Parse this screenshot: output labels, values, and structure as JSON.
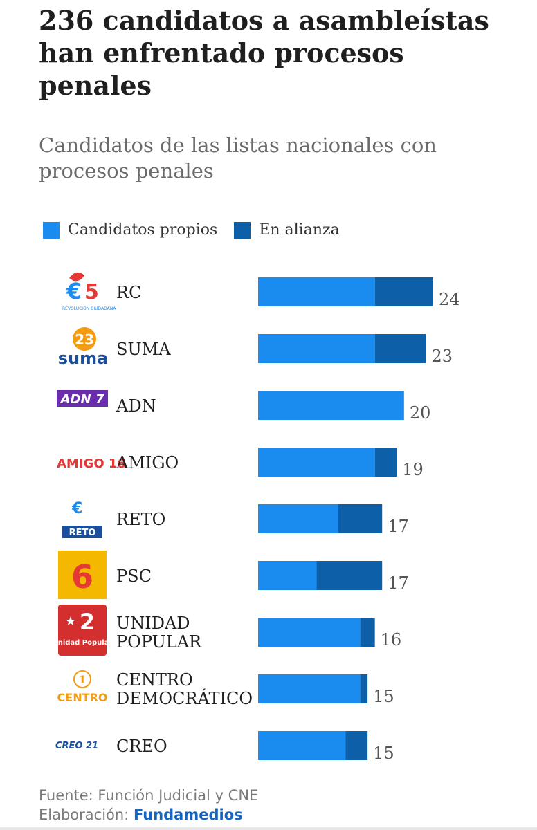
{
  "header": {
    "title": "236 candidatos a asambleístas han enfrentado procesos penales",
    "subtitle": "Candidatos de las listas nacionales con procesos penales"
  },
  "legend": [
    {
      "label": "Candidatos propios",
      "color": "#1a8cf0"
    },
    {
      "label": "En alianza",
      "color": "#0d5fa8"
    }
  ],
  "footer": {
    "source": "Fuente: Función Judicial y CNE",
    "credit_prefix": "Elaboración:",
    "credit_brand": "Fundamedios"
  },
  "chart_data": {
    "type": "bar",
    "orientation": "horizontal",
    "stacked": true,
    "title": "236 candidatos a asambleístas han enfrentado procesos penales",
    "subtitle": "Candidatos de las listas nacionales con procesos penales",
    "categories": [
      "RC",
      "SUMA",
      "ADN",
      "AMIGO",
      "RETO",
      "PSC",
      "UNIDAD POPULAR",
      "CENTRO DEMOCRÁTICO",
      "CREO"
    ],
    "category_lines": [
      [
        "RC"
      ],
      [
        "SUMA"
      ],
      [
        "ADN"
      ],
      [
        "AMIGO"
      ],
      [
        "RETO"
      ],
      [
        "PSC"
      ],
      [
        "UNIDAD",
        "POPULAR"
      ],
      [
        "CENTRO",
        "DEMOCRÁTICO"
      ],
      [
        "CREO"
      ]
    ],
    "series": [
      {
        "name": "Candidatos propios",
        "color": "#1a8cf0",
        "values": [
          16,
          16,
          20,
          16,
          11,
          8,
          14,
          14,
          12
        ]
      },
      {
        "name": "En alianza",
        "color": "#0d5fa8",
        "values": [
          8,
          7,
          0,
          3,
          6,
          9,
          2,
          1,
          3
        ]
      }
    ],
    "totals": [
      24,
      23,
      20,
      19,
      17,
      17,
      16,
      15,
      15
    ],
    "xlim": [
      0,
      24
    ],
    "grid": false,
    "legend_position": "top-left",
    "logos": [
      {
        "icon": "revolucion-ciudadana-logo",
        "text": "5",
        "caption": "REVOLUCIÓN CIUDADANA"
      },
      {
        "icon": "suma-logo",
        "text": "23",
        "caption": "suma"
      },
      {
        "icon": "adn-logo",
        "text": "ADN 7"
      },
      {
        "icon": "amigo-logo",
        "text": "AMIGO 16"
      },
      {
        "icon": "reto-logo",
        "text": "RETO"
      },
      {
        "icon": "psc-logo",
        "text": "6"
      },
      {
        "icon": "unidad-popular-logo",
        "text": "2",
        "caption": "Unidad Popular"
      },
      {
        "icon": "centro-democratico-logo",
        "text": "1",
        "caption": "CENTRO"
      },
      {
        "icon": "creo-logo",
        "text": "CREO 21"
      }
    ]
  }
}
